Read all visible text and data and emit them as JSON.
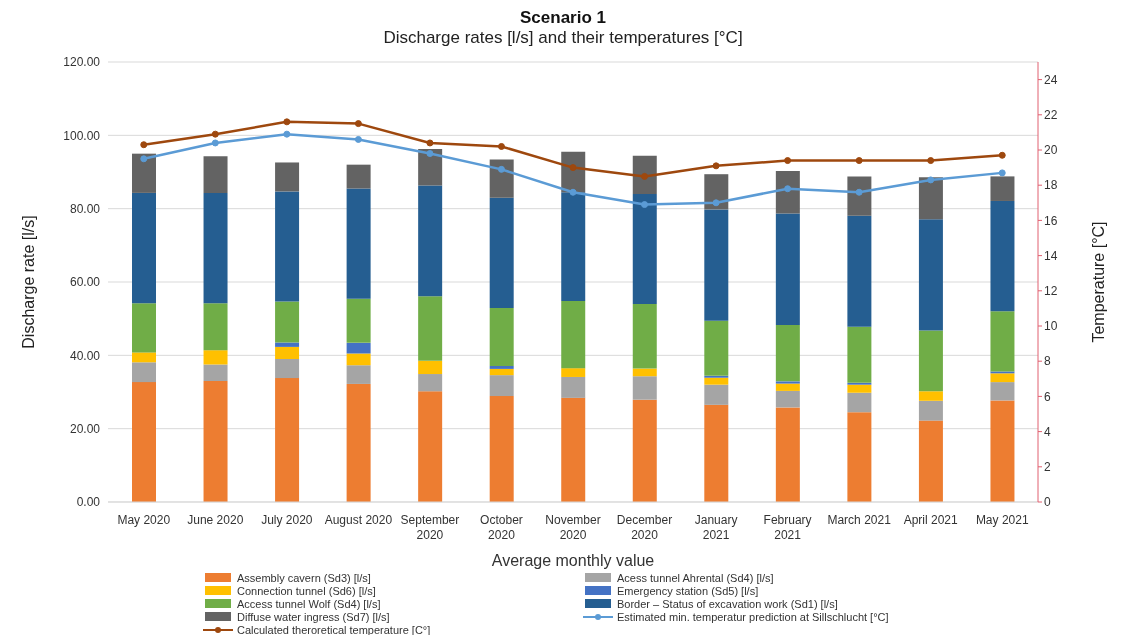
{
  "chart_data": {
    "type": "bar",
    "title": "Scenario 1",
    "subtitle": "Discharge rates [l/s] and their temperatures [°C]",
    "xlabel": "Average monthly value",
    "ylabel": "Discharge rate [l/s]",
    "y2label": "Temperature [°C]",
    "categories": [
      "May 2020",
      "June 2020",
      "July 2020",
      "August 2020",
      "September 2020",
      "October 2020",
      "November 2020",
      "December 2020",
      "January 2021",
      "February 2021",
      "March 2021",
      "April 2021",
      "May 2021"
    ],
    "stacked": true,
    "series": [
      {
        "name": "Assembly cavern (Sd3) [l/s]",
        "color": "#ed7d31",
        "values": [
          32.7,
          33.0,
          33.8,
          32.2,
          30.2,
          28.9,
          28.4,
          27.9,
          26.5,
          25.8,
          24.5,
          22.2,
          27.7
        ]
      },
      {
        "name": "Acess tunnel Ahrental (Sd4) [l/s]",
        "color": "#a5a5a5",
        "values": [
          5.4,
          4.5,
          5.2,
          5.1,
          4.7,
          5.7,
          5.7,
          6.4,
          5.5,
          4.5,
          5.3,
          5.4,
          5.0
        ]
      },
      {
        "name": "Connection tunnel (Sd6) [l/s]",
        "color": "#ffc000",
        "values": [
          2.7,
          3.9,
          3.3,
          3.2,
          3.6,
          1.7,
          2.4,
          2.1,
          1.9,
          2.0,
          2.2,
          2.6,
          2.4
        ]
      },
      {
        "name": "Emergency station (Sd5) [l/s]",
        "color": "#4472c4",
        "values": [
          0,
          0,
          1.2,
          2.9,
          0,
          0.8,
          0,
          0,
          0.5,
          0.6,
          0.5,
          0,
          0.5
        ]
      },
      {
        "name": "Access tunnel Wolf (Sd4) [l/s]",
        "color": "#70ad47",
        "values": [
          13.4,
          12.8,
          11.2,
          12.0,
          17.6,
          15.8,
          18.3,
          17.6,
          15.0,
          15.4,
          15.3,
          16.6,
          16.4
        ]
      },
      {
        "name": "Border – Status of excavation work (Sd1) [l/s]",
        "color": "#255e91",
        "values": [
          30.1,
          30.1,
          30.0,
          30.1,
          30.2,
          30.1,
          29.7,
          30.0,
          30.4,
          30.4,
          30.3,
          30.3,
          30.1
        ]
      },
      {
        "name": "Diffuse water ingress (Sd7) [l/s]",
        "color": "#636363",
        "values": [
          10.7,
          10.0,
          7.9,
          6.5,
          10.0,
          10.4,
          11.0,
          10.4,
          9.6,
          11.6,
          10.7,
          11.5,
          6.7
        ]
      },
      {
        "name": "Estimated min. temperatur prediction at Sillschlucht [°C]",
        "type": "line",
        "axis": "y2",
        "color": "#5b9bd5",
        "values": [
          19.5,
          20.4,
          20.9,
          20.6,
          19.8,
          18.9,
          17.6,
          16.9,
          17.0,
          17.8,
          17.6,
          18.3,
          18.7
        ]
      },
      {
        "name": "Calculated theroretical temperature [C°]",
        "type": "line",
        "axis": "y2",
        "color": "#9e480e",
        "values": [
          20.3,
          20.9,
          21.6,
          21.5,
          20.4,
          20.2,
          19.0,
          18.5,
          19.1,
          19.4,
          19.4,
          19.4,
          19.7
        ]
      }
    ],
    "ylim": [
      0,
      120
    ],
    "yticks": [
      {
        "value": 0,
        "label": "0.00"
      },
      {
        "value": 20,
        "label": "20.00"
      },
      {
        "value": 40,
        "label": "40.00"
      },
      {
        "value": 60,
        "label": "60.00"
      },
      {
        "value": 80,
        "label": "80.00"
      },
      {
        "value": 100,
        "label": "100.00"
      },
      {
        "value": 120,
        "label": "120.00"
      }
    ],
    "y2lim": [
      0,
      25
    ],
    "y2ticks": [
      0,
      2,
      4,
      6,
      8,
      10,
      12,
      14,
      16,
      18,
      20,
      22,
      24
    ],
    "grid": "y",
    "legend": "bottom",
    "marker": "circle",
    "line_style": "solid"
  }
}
